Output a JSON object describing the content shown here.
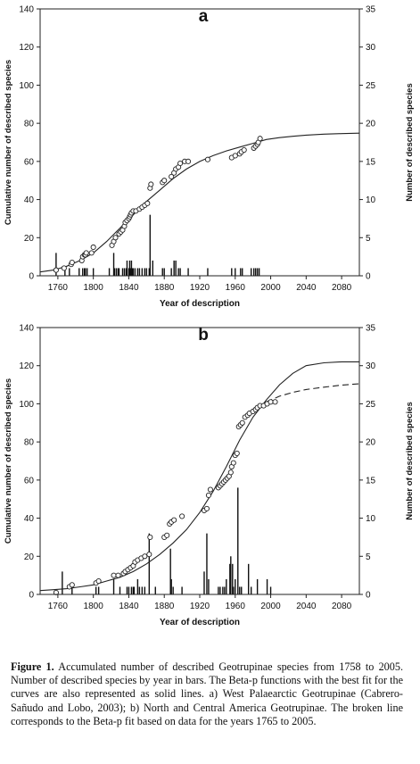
{
  "chart_data": [
    {
      "type": "scatter",
      "panel_label": "a",
      "xlabel": "Year of description",
      "ylabel_left": "Cumulative number of described species",
      "ylabel_right": "Number of described species",
      "xlim": [
        1740,
        2100
      ],
      "xticks": [
        1760,
        1800,
        1840,
        1880,
        1920,
        1960,
        2000,
        2040,
        2080
      ],
      "ylim_left": [
        0,
        140
      ],
      "yticks_left": [
        0,
        20,
        40,
        60,
        80,
        100,
        120,
        140
      ],
      "ylim_right": [
        0,
        35
      ],
      "yticks_right": [
        0,
        5,
        10,
        15,
        20,
        25,
        30,
        35
      ],
      "grid": false,
      "points": {
        "x": [
          1758,
          1767,
          1775,
          1776,
          1787,
          1788,
          1790,
          1791,
          1792,
          1798,
          1800,
          1821,
          1823,
          1825,
          1829,
          1831,
          1833,
          1835,
          1836,
          1838,
          1840,
          1841,
          1842,
          1843,
          1845,
          1848,
          1852,
          1855,
          1858,
          1861,
          1864,
          1865,
          1878,
          1880,
          1888,
          1891,
          1893,
          1896,
          1898,
          1903,
          1907,
          1929,
          1956,
          1960,
          1965,
          1967,
          1970,
          1981,
          1983,
          1985,
          1986,
          1988
        ],
        "y": [
          3,
          4,
          6,
          7,
          8,
          10,
          11,
          11,
          12,
          12,
          15,
          16,
          18,
          20,
          22,
          23,
          24,
          26,
          28,
          29,
          30,
          31,
          32,
          33,
          34,
          34,
          35,
          36,
          37,
          38,
          46,
          48,
          49,
          50,
          52,
          54,
          56,
          57,
          59,
          60,
          60,
          61,
          62,
          63,
          64,
          65,
          66,
          67,
          68,
          69,
          70,
          72
        ]
      },
      "bars": {
        "x": [
          1758,
          1768,
          1773,
          1784,
          1788,
          1790,
          1791,
          1793,
          1800,
          1818,
          1823,
          1824,
          1826,
          1828,
          1829,
          1833,
          1835,
          1837,
          1838,
          1840,
          1841,
          1842,
          1843,
          1844,
          1845,
          1847,
          1850,
          1852,
          1855,
          1858,
          1860,
          1863,
          1864,
          1867,
          1878,
          1880,
          1888,
          1891,
          1893,
          1896,
          1898,
          1907,
          1929,
          1956,
          1960,
          1966,
          1968,
          1978,
          1981,
          1983,
          1985,
          1987
        ],
        "values": [
          3,
          1,
          1,
          1,
          1,
          1,
          1,
          1,
          1,
          1,
          3,
          1,
          1,
          1,
          1,
          1,
          1,
          1,
          2,
          1,
          2,
          1,
          2,
          1,
          1,
          1,
          1,
          1,
          1,
          1,
          1,
          1,
          8,
          2,
          1,
          1,
          1,
          2,
          2,
          1,
          1,
          1,
          1,
          1,
          1,
          1,
          1,
          1,
          1,
          1,
          1,
          1
        ]
      },
      "series": [
        {
          "x": [
            1740,
            1755,
            1770,
            1785,
            1800,
            1815,
            1830,
            1845,
            1860,
            1875,
            1890,
            1905,
            1920,
            1935,
            1950,
            1965,
            1980,
            1995,
            2010,
            2025,
            2040,
            2060,
            2080,
            2100
          ],
          "y": [
            2,
            3,
            5,
            8,
            12,
            18,
            25,
            32,
            39,
            45,
            51,
            56,
            60,
            63,
            65.5,
            67.5,
            69.5,
            71.5,
            72.5,
            73.2,
            73.8,
            74.3,
            74.6,
            74.8
          ]
        }
      ]
    },
    {
      "type": "scatter",
      "panel_label": "b",
      "xlabel": "Year of description",
      "ylabel_left": "Cumulative number of described species",
      "ylabel_right": "Number of described species",
      "xlim": [
        1740,
        2100
      ],
      "xticks": [
        1760,
        1800,
        1840,
        1880,
        1920,
        1960,
        2000,
        2040,
        2080
      ],
      "ylim_left": [
        0,
        140
      ],
      "yticks_left": [
        0,
        20,
        40,
        60,
        80,
        100,
        120,
        140
      ],
      "ylim_right": [
        0,
        35
      ],
      "yticks_right": [
        0,
        5,
        10,
        15,
        20,
        25,
        30,
        35
      ],
      "grid": false,
      "points": {
        "x": [
          1758,
          1773,
          1776,
          1803,
          1806,
          1823,
          1828,
          1834,
          1836,
          1839,
          1842,
          1845,
          1847,
          1850,
          1854,
          1858,
          1863,
          1864,
          1880,
          1883,
          1886,
          1888,
          1891,
          1900,
          1925,
          1928,
          1930,
          1932,
          1941,
          1943,
          1945,
          1947,
          1949,
          1951,
          1953,
          1955,
          1956,
          1958,
          1960,
          1962,
          1964,
          1966,
          1968,
          1971,
          1974,
          1976,
          1980,
          1983,
          1985,
          1988,
          1992,
          1996,
          2000,
          2005
        ],
        "y": [
          1,
          4,
          5,
          6,
          7,
          10,
          10,
          11,
          12,
          13,
          14,
          15,
          17,
          18,
          19,
          20,
          21,
          30,
          30,
          31,
          37,
          38,
          39,
          41,
          44,
          45,
          52,
          55,
          56,
          57,
          58,
          59,
          60,
          61,
          62,
          64,
          67,
          69,
          73,
          74,
          88,
          89,
          90,
          93,
          94,
          95,
          96,
          97,
          98,
          99,
          99,
          100,
          101,
          101
        ]
      },
      "bars": {
        "x": [
          1765,
          1776,
          1803,
          1806,
          1823,
          1830,
          1838,
          1840,
          1843,
          1845,
          1846,
          1850,
          1852,
          1855,
          1858,
          1863,
          1870,
          1887,
          1888,
          1890,
          1900,
          1925,
          1928,
          1930,
          1941,
          1943,
          1946,
          1948,
          1950,
          1954,
          1955,
          1957,
          1958,
          1960,
          1963,
          1965,
          1967,
          1975,
          1978,
          1985,
          1996,
          2000
        ],
        "values": [
          3,
          1,
          1,
          1,
          2,
          1,
          1,
          1,
          1,
          1,
          1,
          2,
          1,
          1,
          1,
          8,
          1,
          6,
          2,
          1,
          1,
          3,
          8,
          2,
          1,
          1,
          1,
          1,
          2,
          4,
          5,
          4,
          1,
          2,
          14,
          1,
          1,
          4,
          1,
          2,
          2,
          1
        ]
      },
      "series": [
        {
          "x": [
            1740,
            1755,
            1770,
            1785,
            1800,
            1815,
            1830,
            1845,
            1860,
            1875,
            1890,
            1905,
            1920,
            1935,
            1950,
            1965,
            1980,
            1995,
            2010,
            2025,
            2040,
            2060,
            2080,
            2100
          ],
          "y": [
            2,
            2.5,
            3,
            4,
            5,
            7,
            9,
            12,
            16,
            21,
            27,
            34,
            43,
            54,
            67,
            81,
            93,
            102,
            110,
            116,
            120,
            121.5,
            122,
            122
          ]
        },
        {
          "style": "dashed",
          "x": [
            1995,
            2010,
            2025,
            2040,
            2060,
            2080,
            2100
          ],
          "y": [
            101,
            104,
            106,
            107.5,
            108.7,
            109.8,
            110.5
          ]
        }
      ]
    }
  ],
  "caption": {
    "label": "Figure 1.",
    "text": "Accumulated number of described Geotrupinae species from 1758 to 2005. Number of described species by year in bars. The Beta-p functions with the best fit for the curves are also represented as solid lines. a) West Palaearctic Geotrupinae (Cabrero-Sañudo and Lobo, 2003); b) North and Central America Geotrupinae. The broken line corresponds to the Beta-p fit based on data for the years 1765 to 2005."
  }
}
